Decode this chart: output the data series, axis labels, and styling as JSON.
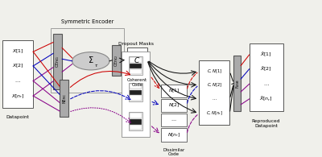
{
  "bg_color": "#f0f0eb",
  "title": "Symmetric Encoder",
  "colors": {
    "red": "#cc0000",
    "blue": "#0000bb",
    "purple": "#880088",
    "black": "#111111",
    "gray_box": "#aaaaaa",
    "sigma_fill": "#cccccc",
    "white": "#ffffff",
    "edge": "#555555",
    "light_edge": "#888888"
  },
  "input_labels": [
    "$X[1]$",
    "$X[2]$",
    "$\\cdots$",
    "$X[n_r]$"
  ],
  "datapoint_label": "Datapoint",
  "cenc1_label": "CEnc$_1$",
  "cenc2_label": "CEnc$_2$",
  "nenc_label": "NEnc",
  "sigma_label": "$\\Sigma$",
  "sigma_sub": "$\\tau$",
  "coherent_label": "$C$",
  "coherent_sublabel": "Coherent\nCode",
  "dropout_label": "Dropout Masks",
  "dissimilar_labels": [
    "$N[1]$",
    "$N[2]$",
    "$\\cdots$",
    "$N[n_r]$"
  ],
  "dissimilar_sublabel": "Dissimilar\nCode",
  "fuse_labels": [
    "$C, N[1]$",
    "$C, N[2]$",
    "$\\cdots$",
    "$C, N[n_r]$"
  ],
  "fuse_label": "Fuse",
  "output_labels": [
    "$\\hat{X}[1]$",
    "$\\hat{X}[2]$",
    "$\\cdots$",
    "$\\hat{X}[n_r]$"
  ],
  "reproduced_label": "Reproduced\nDatapoint"
}
